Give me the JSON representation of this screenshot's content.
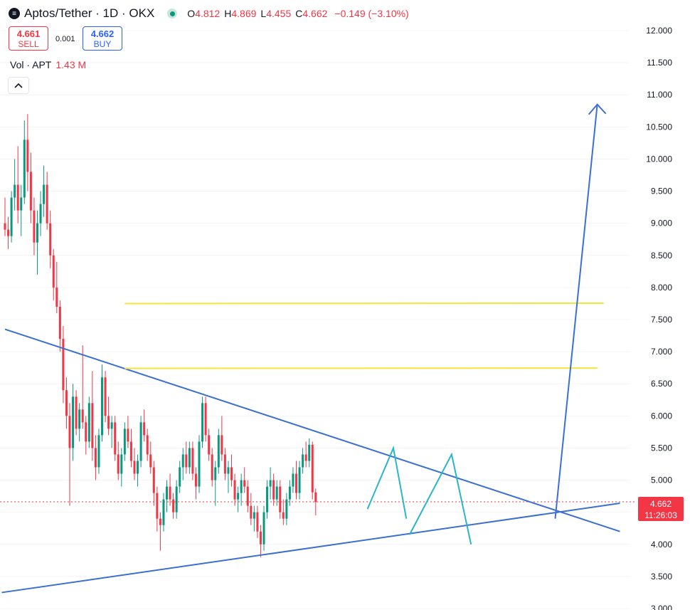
{
  "header": {
    "icon": "stacked-coins-icon",
    "title": "Aptos/Tether · 1D · OKX",
    "status_color": "#089981",
    "ohlc": {
      "o_label": "O",
      "o_value": "4.812",
      "h_label": "H",
      "h_value": "4.869",
      "l_label": "L",
      "l_value": "4.455",
      "c_label": "C",
      "c_value": "4.662",
      "change": "−0.149 (−3.10%)"
    }
  },
  "trade": {
    "sell_price": "4.661",
    "sell_label": "SELL",
    "spread": "0.001",
    "buy_price": "4.662",
    "buy_label": "BUY"
  },
  "volume": {
    "label": "Vol · APT",
    "value": "1.43 M"
  },
  "collapse_icon": "chevron-up-icon",
  "last_price": {
    "price": "4.662",
    "countdown": "11:26:03",
    "color": "#f23645"
  },
  "chart_data": {
    "type": "candlestick",
    "y_axis": {
      "ticks": [
        "12.000",
        "11.500",
        "11.000",
        "10.500",
        "10.000",
        "9.500",
        "9.000",
        "8.500",
        "8.000",
        "7.500",
        "7.000",
        "6.500",
        "6.000",
        "5.500",
        "5.000",
        "4.500",
        "4.000",
        "3.500",
        "3.000"
      ],
      "tick_values": [
        12,
        11.5,
        11,
        10.5,
        10,
        9.5,
        9,
        8.5,
        8,
        7.5,
        7,
        6.5,
        6,
        5.5,
        5,
        4.5,
        4,
        3.5,
        3
      ],
      "range": [
        3.0,
        12.0
      ],
      "position": "right"
    },
    "last_price": 4.662,
    "colors": {
      "up": "#089981",
      "down": "#f23645",
      "trend": "#3b6fd4",
      "level": "#f5e43a",
      "projection": "#29b6c8"
    },
    "candles": [
      [
        9.0,
        9.4,
        8.8,
        8.9
      ],
      [
        8.9,
        9.1,
        8.6,
        8.8
      ],
      [
        8.8,
        9.5,
        8.7,
        9.4
      ],
      [
        9.4,
        10.0,
        9.2,
        9.6
      ],
      [
        9.6,
        10.2,
        9.0,
        9.2
      ],
      [
        9.2,
        9.6,
        8.8,
        9.4
      ],
      [
        9.4,
        10.6,
        9.3,
        10.3
      ],
      [
        10.3,
        10.7,
        9.5,
        9.8
      ],
      [
        9.8,
        10.1,
        9.0,
        9.2
      ],
      [
        9.2,
        9.4,
        8.5,
        8.7
      ],
      [
        8.7,
        9.2,
        8.2,
        9.0
      ],
      [
        9.0,
        9.5,
        8.8,
        9.3
      ],
      [
        9.3,
        9.9,
        9.1,
        9.6
      ],
      [
        9.6,
        9.8,
        8.9,
        9.0
      ],
      [
        9.0,
        9.2,
        8.3,
        8.5
      ],
      [
        8.5,
        8.6,
        7.8,
        8.0
      ],
      [
        8.0,
        8.4,
        7.6,
        7.7
      ],
      [
        7.7,
        7.8,
        7.0,
        7.2
      ],
      [
        7.2,
        7.4,
        6.2,
        6.4
      ],
      [
        6.4,
        6.6,
        5.8,
        6.0
      ],
      [
        6.0,
        6.2,
        4.6,
        5.5
      ],
      [
        5.5,
        6.5,
        5.3,
        6.3
      ],
      [
        6.3,
        6.4,
        5.7,
        5.8
      ],
      [
        5.8,
        6.2,
        5.6,
        6.1
      ],
      [
        6.1,
        7.1,
        5.8,
        5.9
      ],
      [
        5.9,
        6.0,
        5.4,
        5.6
      ],
      [
        5.6,
        6.3,
        5.5,
        6.2
      ],
      [
        6.2,
        6.7,
        5.3,
        5.5
      ],
      [
        5.5,
        5.7,
        5.0,
        5.2
      ],
      [
        5.2,
        5.8,
        5.1,
        5.7
      ],
      [
        5.7,
        6.8,
        5.6,
        6.6
      ],
      [
        6.6,
        6.7,
        5.9,
        6.0
      ],
      [
        6.0,
        6.3,
        5.7,
        5.8
      ],
      [
        5.8,
        6.0,
        5.5,
        5.9
      ],
      [
        5.9,
        6.0,
        5.3,
        5.4
      ],
      [
        5.4,
        5.6,
        5.0,
        5.1
      ],
      [
        5.1,
        5.5,
        4.9,
        5.4
      ],
      [
        5.4,
        5.9,
        5.3,
        5.8
      ],
      [
        5.8,
        6.0,
        5.5,
        5.6
      ],
      [
        5.6,
        5.8,
        5.2,
        5.3
      ],
      [
        5.3,
        5.5,
        5.0,
        5.1
      ],
      [
        5.1,
        5.4,
        4.9,
        5.3
      ],
      [
        5.3,
        6.0,
        5.2,
        5.9
      ],
      [
        5.9,
        6.1,
        5.6,
        5.7
      ],
      [
        5.7,
        5.8,
        5.3,
        5.4
      ],
      [
        5.4,
        5.6,
        5.1,
        5.2
      ],
      [
        5.2,
        5.3,
        4.6,
        4.8
      ],
      [
        4.8,
        4.9,
        4.2,
        4.4
      ],
      [
        4.4,
        4.5,
        3.9,
        4.3
      ],
      [
        4.3,
        4.8,
        4.2,
        4.7
      ],
      [
        4.7,
        5.0,
        4.5,
        4.9
      ],
      [
        4.9,
        5.1,
        4.6,
        4.7
      ],
      [
        4.7,
        4.8,
        4.4,
        4.5
      ],
      [
        4.5,
        5.0,
        4.4,
        4.9
      ],
      [
        4.9,
        5.3,
        4.8,
        5.2
      ],
      [
        5.2,
        5.5,
        5.0,
        5.4
      ],
      [
        5.4,
        5.6,
        5.1,
        5.2
      ],
      [
        5.2,
        5.6,
        5.1,
        5.5
      ],
      [
        5.5,
        5.6,
        5.0,
        5.1
      ],
      [
        5.1,
        5.2,
        4.7,
        4.9
      ],
      [
        4.9,
        5.7,
        4.8,
        5.6
      ],
      [
        5.6,
        6.3,
        5.5,
        6.2
      ],
      [
        6.2,
        6.3,
        5.6,
        5.7
      ],
      [
        5.7,
        5.8,
        5.3,
        5.4
      ],
      [
        5.4,
        5.5,
        4.9,
        5.0
      ],
      [
        5.0,
        5.3,
        4.6,
        5.2
      ],
      [
        5.2,
        5.8,
        5.1,
        5.7
      ],
      [
        5.7,
        6.0,
        5.3,
        5.4
      ],
      [
        5.4,
        5.5,
        5.0,
        5.1
      ],
      [
        5.1,
        5.3,
        4.8,
        5.2
      ],
      [
        5.2,
        5.4,
        4.9,
        5.0
      ],
      [
        5.0,
        5.1,
        4.6,
        4.7
      ],
      [
        4.7,
        4.9,
        4.5,
        4.8
      ],
      [
        4.8,
        5.1,
        4.6,
        5.0
      ],
      [
        5.0,
        5.2,
        4.8,
        4.9
      ],
      [
        4.9,
        5.0,
        4.5,
        4.6
      ],
      [
        4.6,
        4.8,
        4.3,
        4.4
      ],
      [
        4.4,
        4.6,
        4.2,
        4.5
      ],
      [
        4.5,
        4.6,
        4.1,
        4.2
      ],
      [
        4.2,
        4.3,
        3.8,
        4.0
      ],
      [
        4.0,
        4.6,
        3.9,
        4.5
      ],
      [
        4.5,
        5.0,
        4.4,
        4.9
      ],
      [
        4.9,
        5.2,
        4.7,
        5.0
      ],
      [
        5.0,
        5.1,
        4.6,
        4.7
      ],
      [
        4.7,
        5.0,
        4.6,
        4.9
      ],
      [
        4.9,
        5.0,
        4.4,
        4.5
      ],
      [
        4.5,
        4.7,
        4.3,
        4.4
      ],
      [
        4.4,
        4.8,
        4.3,
        4.7
      ],
      [
        4.7,
        5.0,
        4.6,
        4.9
      ],
      [
        4.9,
        5.2,
        4.8,
        5.1
      ],
      [
        5.1,
        5.3,
        4.7,
        4.8
      ],
      [
        4.8,
        5.3,
        4.7,
        5.2
      ],
      [
        5.2,
        5.5,
        5.1,
        5.4
      ],
      [
        5.4,
        5.6,
        5.2,
        5.3
      ],
      [
        5.3,
        5.65,
        5.2,
        5.55
      ],
      [
        5.55,
        5.6,
        4.7,
        4.81
      ],
      [
        4.81,
        4.87,
        4.45,
        4.66
      ]
    ],
    "trendlines": [
      {
        "name": "descending-resistance",
        "from": [
          0,
          7.35
        ],
        "to": [
          190,
          4.2
        ]
      },
      {
        "name": "ascending-support",
        "from": [
          -1,
          3.25
        ],
        "to": [
          190,
          4.64
        ]
      }
    ],
    "horizontal_levels": [
      7.75,
      6.74
    ],
    "projection_arrow": {
      "from": [
        170,
        4.4
      ],
      "to": [
        183,
        10.85
      ]
    },
    "zigzag": [
      [
        112,
        4.55
      ],
      [
        120,
        5.5
      ],
      [
        124,
        4.4
      ],
      [
        125,
        4.15
      ],
      [
        138,
        5.4
      ],
      [
        144,
        4.0
      ]
    ]
  }
}
